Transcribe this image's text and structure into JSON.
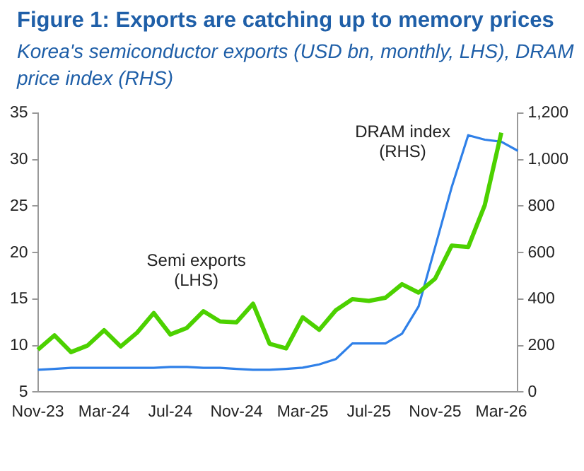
{
  "chart_data": {
    "type": "line",
    "title": "Figure 1: Exports are catching up to memory prices",
    "subtitle": "Korea's semiconductor exports (USD bn, monthly, LHS), DRAM price index (RHS)",
    "categories": [
      "Nov-23",
      null,
      null,
      null,
      "Mar-24",
      null,
      null,
      null,
      "Jul-24",
      null,
      null,
      null,
      "Nov-24",
      null,
      null,
      null,
      "Mar-25",
      null,
      null,
      null,
      "Jul-25",
      null,
      null,
      null,
      "Nov-25",
      null,
      null,
      null,
      "Mar-26",
      null
    ],
    "series": [
      {
        "name": "Semi exports (LHS)",
        "color": "#4cd100",
        "values": [
          9.55,
          11.1,
          9.3,
          10.0,
          11.65,
          9.9,
          11.4,
          13.5,
          11.2,
          11.9,
          13.7,
          12.6,
          12.5,
          14.5,
          10.2,
          9.7,
          13.05,
          11.7,
          13.8,
          15.0,
          14.8,
          15.15,
          16.6,
          15.7,
          17.2,
          20.75,
          20.6,
          25.1,
          32.9,
          null
        ]
      },
      {
        "name": "DRAM index (RHS)",
        "color": "#2f80e8",
        "axis": "y2",
        "values": [
          96,
          100,
          104,
          104,
          104,
          104,
          104,
          104,
          108,
          108,
          104,
          104,
          100,
          96,
          96,
          100,
          105,
          119,
          142,
          209,
          209,
          209,
          251,
          368,
          623,
          881,
          1105,
          1086,
          1077,
          1038
        ]
      }
    ],
    "ylim": [
      5,
      35
    ],
    "yticks": [
      5,
      10,
      15,
      20,
      25,
      30,
      35
    ],
    "y2lim": [
      0,
      1200
    ],
    "y2ticks": [
      0,
      200,
      400,
      600,
      800,
      {
        "value": 1000,
        "label": "1,000"
      },
      {
        "value": 1200,
        "label": "1,200"
      }
    ],
    "grid": false,
    "legend": false
  }
}
